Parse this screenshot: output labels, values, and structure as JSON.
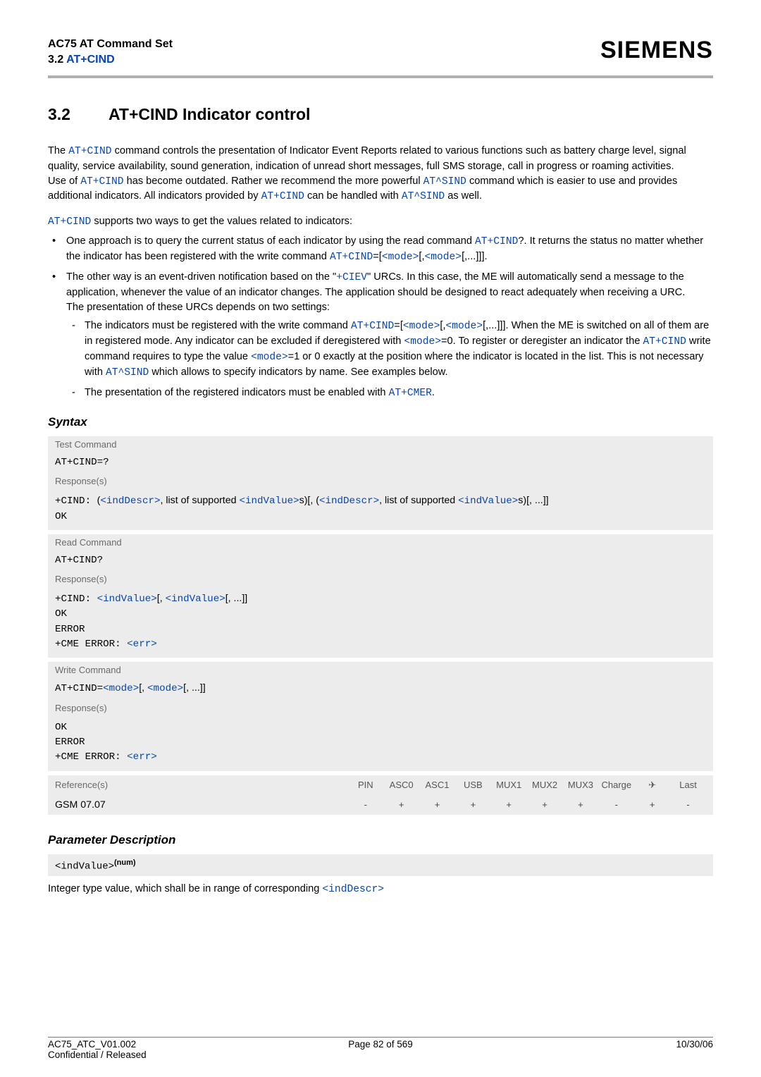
{
  "header": {
    "left1": "AC75 AT Command Set",
    "left2_prefix": "3.2 ",
    "left2_link": "AT+CIND",
    "brand": "SIEMENS"
  },
  "section": {
    "num": "3.2",
    "title_cmd": "AT+CIND",
    "title_rest": "   Indicator control"
  },
  "para1": {
    "p1a": "The ",
    "p1_link1": "AT+CIND",
    "p1b": " command controls the presentation of Indicator Event Reports related to various functions such as battery charge level, signal quality, service availability, sound generation, indication of unread short messages, full SMS storage, call in progress or roaming activities.",
    "p2a": "Use of ",
    "p2_link1": "AT+CIND",
    "p2b": " has become outdated. Rather we recommend the more powerful ",
    "p2_link2": "AT^SIND",
    "p2c": " command which is easier to use and provides additional indicators. All indicators provided by ",
    "p2_link3": "AT+CIND",
    "p2d": " can be handled with ",
    "p2_link4": "AT^SIND",
    "p2e": " as well."
  },
  "para2": {
    "t1_link": "AT+CIND",
    "t1": " supports two ways to get the values related to indicators:"
  },
  "bullet1": {
    "a": "One approach is to query the current status of each indicator by using the read command ",
    "link1": "AT+CIND",
    "b": "?. It returns the status no matter whether the indicator has been registered with the write command ",
    "link2": "AT+CIND",
    "c": "=[",
    "link3": "<mode>",
    "d": "[,",
    "link4": "<mode>",
    "e": "[,...]]]."
  },
  "bullet2": {
    "a": "The other way is an event-driven notification based on the \"",
    "link1": "+CIEV",
    "b": "\" URCs. In this case, the ME will automatically send a message to the application, whenever the value of an indicator changes. The application should be designed to react adequately when receiving a URC.",
    "c": "The presentation of these URCs depends on two settings:"
  },
  "sub1": {
    "a": "The indicators must be registered with the write command ",
    "link1": "AT+CIND",
    "b": "=[",
    "link2": "<mode>",
    "c": "[,",
    "link3": "<mode>",
    "d": "[,...]]]. When the ME is switched on all of them are in registered mode. Any indicator can be excluded if deregistered with ",
    "link4": "<mode>",
    "e": "=0. To register or deregister an indicator the ",
    "link5": "AT+CIND",
    "f": " write command requires to type the value ",
    "link6": "<mode>",
    "g": "=1 or 0 exactly at the position where the indicator is located in the list. This is not necessary with ",
    "link7": "AT^SIND",
    "h": " which allows to specify indicators by name. See examples below."
  },
  "sub2": {
    "a": "The presentation of the registered indicators must be enabled with ",
    "link1": "AT+CMER",
    "b": "."
  },
  "syntax_label": "Syntax",
  "box_test": {
    "label": "Test Command",
    "cmd": "AT+CIND=?",
    "resp_label": "Response(s)",
    "r1a": "+CIND: ",
    "r1b": "(",
    "r1_link1": "<indDescr>",
    "r1c": ", list of supported ",
    "r1_link2": "<indValue>",
    "r1d": "s)[, (",
    "r1_link3": "<indDescr>",
    "r1e": ", list of supported ",
    "r1_link4": "<indValue>",
    "r1f": "s)[, ...]]",
    "ok": "OK"
  },
  "box_read": {
    "label": "Read Command",
    "cmd": "AT+CIND?",
    "resp_label": "Response(s)",
    "r1a": "+CIND: ",
    "r1_link1": "<indValue>",
    "r1b": "[, ",
    "r1_link2": "<indValue>",
    "r1c": "[, ...]]",
    "ok": "OK",
    "err": "ERROR",
    "cme": "+CME ERROR: ",
    "cme_link": "<err>"
  },
  "box_write": {
    "label": "Write Command",
    "cmd_a": "AT+CIND=",
    "cmd_link1": "<mode>",
    "cmd_b": "[, ",
    "cmd_link2": "<mode>",
    "cmd_c": "[, ...]]",
    "resp_label": "Response(s)",
    "ok": "OK",
    "err": "ERROR",
    "cme": "+CME ERROR: ",
    "cme_link": "<err>"
  },
  "ref": {
    "label": "Reference(s)",
    "val": "GSM 07.07",
    "cols": [
      "PIN",
      "ASC0",
      "ASC1",
      "USB",
      "MUX1",
      "MUX2",
      "MUX3",
      "Charge",
      "",
      "Last"
    ],
    "vals": [
      "-",
      "+",
      "+",
      "+",
      "+",
      "+",
      "+",
      "-",
      "+",
      "-"
    ]
  },
  "pdesc_label": "Parameter Description",
  "param": {
    "name": "<indValue>",
    "sup": "(num)",
    "desc_a": "Integer type value, which shall be in range of corresponding ",
    "desc_link": "<indDescr>"
  },
  "footer": {
    "l1": "AC75_ATC_V01.002",
    "l2": "Confidential / Released",
    "mid": "Page 82 of 569",
    "r": "10/30/06"
  }
}
